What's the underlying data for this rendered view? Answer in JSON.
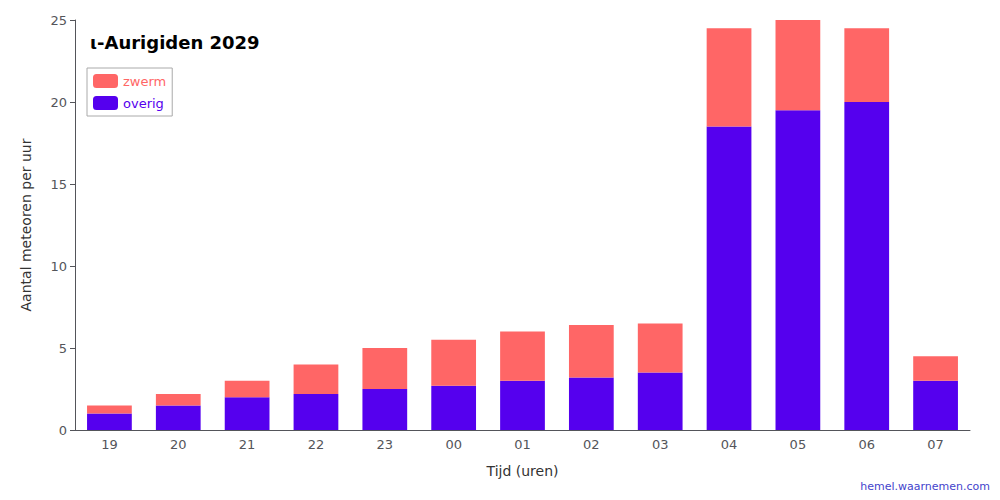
{
  "chart_data": {
    "type": "bar",
    "stacked": true,
    "title": "ι-Aurigiden 2029",
    "xlabel": "Tijd (uren)",
    "ylabel": "Aantal meteoren per uur",
    "categories": [
      "19",
      "20",
      "21",
      "22",
      "23",
      "00",
      "01",
      "02",
      "03",
      "04",
      "05",
      "06",
      "07"
    ],
    "series": [
      {
        "name": "overig",
        "color": "#5500ee",
        "values": [
          1.0,
          1.5,
          2.0,
          2.2,
          2.5,
          2.7,
          3.0,
          3.2,
          3.5,
          18.5,
          19.5,
          20.0,
          3.0
        ]
      },
      {
        "name": "zwerm",
        "color": "#ff6666",
        "values": [
          0.5,
          0.7,
          1.0,
          1.8,
          2.5,
          2.8,
          3.0,
          3.2,
          3.0,
          6.0,
          5.5,
          4.5,
          1.5
        ]
      }
    ],
    "ylim": [
      0,
      25
    ],
    "yticks": [
      0,
      5,
      10,
      15,
      20,
      25
    ],
    "grid": false,
    "legend": "upper left",
    "annotations": [
      "hemel.waarnemen.com"
    ]
  }
}
